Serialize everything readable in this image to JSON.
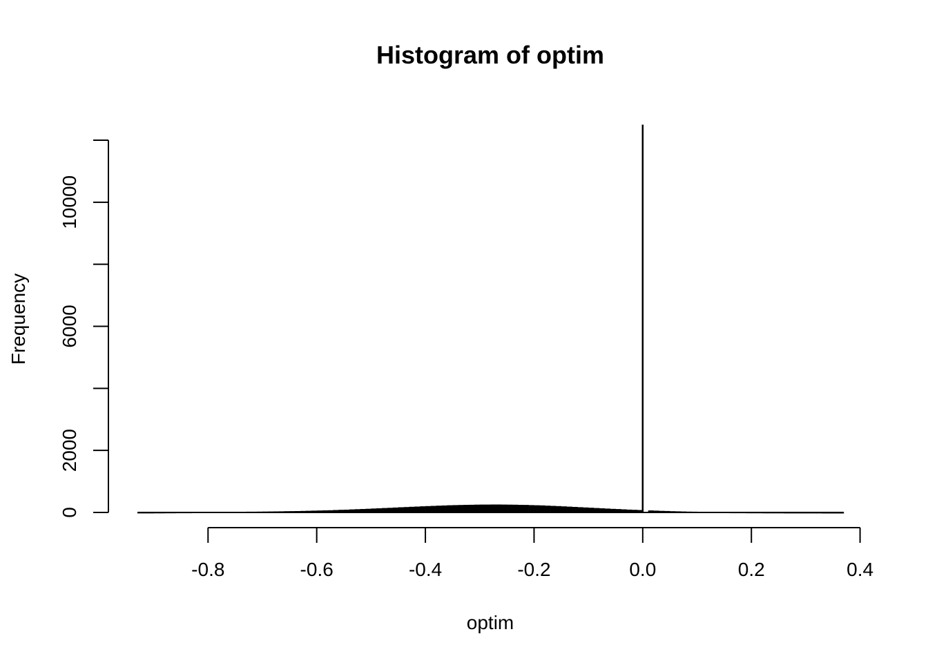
{
  "chart_data": {
    "type": "bar",
    "title": "Histogram of optim",
    "xlabel": "optim",
    "ylabel": "Frequency",
    "xlim": [
      -0.93,
      0.37
    ],
    "ylim": [
      0,
      12000
    ],
    "x_ticks": [
      -0.8,
      -0.6,
      -0.4,
      -0.2,
      0.0,
      0.2,
      0.4
    ],
    "x_tick_labels": [
      "-0.8",
      "-0.6",
      "-0.4",
      "-0.2",
      "0.0",
      "0.2",
      "0.4"
    ],
    "y_ticks": [
      0,
      2000,
      4000,
      6000,
      8000,
      10000,
      12000
    ],
    "y_tick_labels": [
      "0",
      "2000",
      "",
      "6000",
      "",
      "10000",
      ""
    ],
    "bin_width": 0.01,
    "bins": [
      [
        -0.93,
        2
      ],
      [
        -0.92,
        3
      ],
      [
        -0.91,
        3
      ],
      [
        -0.9,
        4
      ],
      [
        -0.89,
        5
      ],
      [
        -0.88,
        6
      ],
      [
        -0.87,
        7
      ],
      [
        -0.86,
        8
      ],
      [
        -0.85,
        9
      ],
      [
        -0.84,
        10
      ],
      [
        -0.83,
        11
      ],
      [
        -0.82,
        12
      ],
      [
        -0.81,
        13
      ],
      [
        -0.8,
        14
      ],
      [
        -0.79,
        15
      ],
      [
        -0.78,
        17
      ],
      [
        -0.77,
        18
      ],
      [
        -0.76,
        19
      ],
      [
        -0.75,
        21
      ],
      [
        -0.74,
        22
      ],
      [
        -0.73,
        24
      ],
      [
        -0.72,
        25
      ],
      [
        -0.71,
        27
      ],
      [
        -0.7,
        29
      ],
      [
        -0.69,
        31
      ],
      [
        -0.68,
        33
      ],
      [
        -0.67,
        36
      ],
      [
        -0.66,
        39
      ],
      [
        -0.65,
        42
      ],
      [
        -0.64,
        45
      ],
      [
        -0.63,
        49
      ],
      [
        -0.62,
        53
      ],
      [
        -0.61,
        57
      ],
      [
        -0.6,
        62
      ],
      [
        -0.59,
        67
      ],
      [
        -0.58,
        72
      ],
      [
        -0.57,
        78
      ],
      [
        -0.56,
        84
      ],
      [
        -0.55,
        90
      ],
      [
        -0.54,
        97
      ],
      [
        -0.53,
        104
      ],
      [
        -0.52,
        111
      ],
      [
        -0.51,
        118
      ],
      [
        -0.5,
        126
      ],
      [
        -0.49,
        134
      ],
      [
        -0.48,
        142
      ],
      [
        -0.47,
        150
      ],
      [
        -0.46,
        158
      ],
      [
        -0.45,
        166
      ],
      [
        -0.44,
        174
      ],
      [
        -0.43,
        182
      ],
      [
        -0.42,
        190
      ],
      [
        -0.41,
        198
      ],
      [
        -0.4,
        205
      ],
      [
        -0.39,
        212
      ],
      [
        -0.38,
        219
      ],
      [
        -0.37,
        225
      ],
      [
        -0.36,
        231
      ],
      [
        -0.35,
        236
      ],
      [
        -0.34,
        241
      ],
      [
        -0.33,
        245
      ],
      [
        -0.32,
        248
      ],
      [
        -0.31,
        251
      ],
      [
        -0.3,
        253
      ],
      [
        -0.29,
        254
      ],
      [
        -0.28,
        255
      ],
      [
        -0.27,
        255
      ],
      [
        -0.26,
        254
      ],
      [
        -0.25,
        252
      ],
      [
        -0.24,
        249
      ],
      [
        -0.23,
        246
      ],
      [
        -0.22,
        242
      ],
      [
        -0.21,
        237
      ],
      [
        -0.2,
        232
      ],
      [
        -0.19,
        226
      ],
      [
        -0.18,
        219
      ],
      [
        -0.17,
        212
      ],
      [
        -0.16,
        204
      ],
      [
        -0.15,
        196
      ],
      [
        -0.14,
        188
      ],
      [
        -0.13,
        179
      ],
      [
        -0.12,
        170
      ],
      [
        -0.11,
        161
      ],
      [
        -0.1,
        152
      ],
      [
        -0.09,
        143
      ],
      [
        -0.08,
        134
      ],
      [
        -0.07,
        125
      ],
      [
        -0.06,
        116
      ],
      [
        -0.05,
        108
      ],
      [
        -0.04,
        100
      ],
      [
        -0.03,
        92
      ],
      [
        -0.02,
        85
      ],
      [
        -0.01,
        78
      ],
      [
        0.0,
        12500
      ],
      [
        0.01,
        65
      ],
      [
        0.02,
        58
      ],
      [
        0.03,
        52
      ],
      [
        0.04,
        46
      ],
      [
        0.05,
        41
      ],
      [
        0.06,
        36
      ],
      [
        0.07,
        31
      ],
      [
        0.08,
        27
      ],
      [
        0.09,
        24
      ],
      [
        0.1,
        21
      ],
      [
        0.11,
        18
      ],
      [
        0.12,
        16
      ],
      [
        0.13,
        14
      ],
      [
        0.14,
        12
      ],
      [
        0.15,
        11
      ],
      [
        0.16,
        10
      ],
      [
        0.17,
        9
      ],
      [
        0.18,
        8
      ],
      [
        0.19,
        7
      ],
      [
        0.2,
        6
      ],
      [
        0.21,
        6
      ],
      [
        0.22,
        5
      ],
      [
        0.23,
        5
      ],
      [
        0.24,
        4
      ],
      [
        0.25,
        4
      ],
      [
        0.26,
        3
      ],
      [
        0.27,
        3
      ],
      [
        0.28,
        3
      ],
      [
        0.29,
        2
      ],
      [
        0.3,
        2
      ],
      [
        0.31,
        2
      ],
      [
        0.32,
        2
      ],
      [
        0.33,
        1
      ],
      [
        0.34,
        1
      ],
      [
        0.35,
        1
      ],
      [
        0.36,
        1
      ]
    ],
    "grid": false,
    "legend": "none"
  }
}
